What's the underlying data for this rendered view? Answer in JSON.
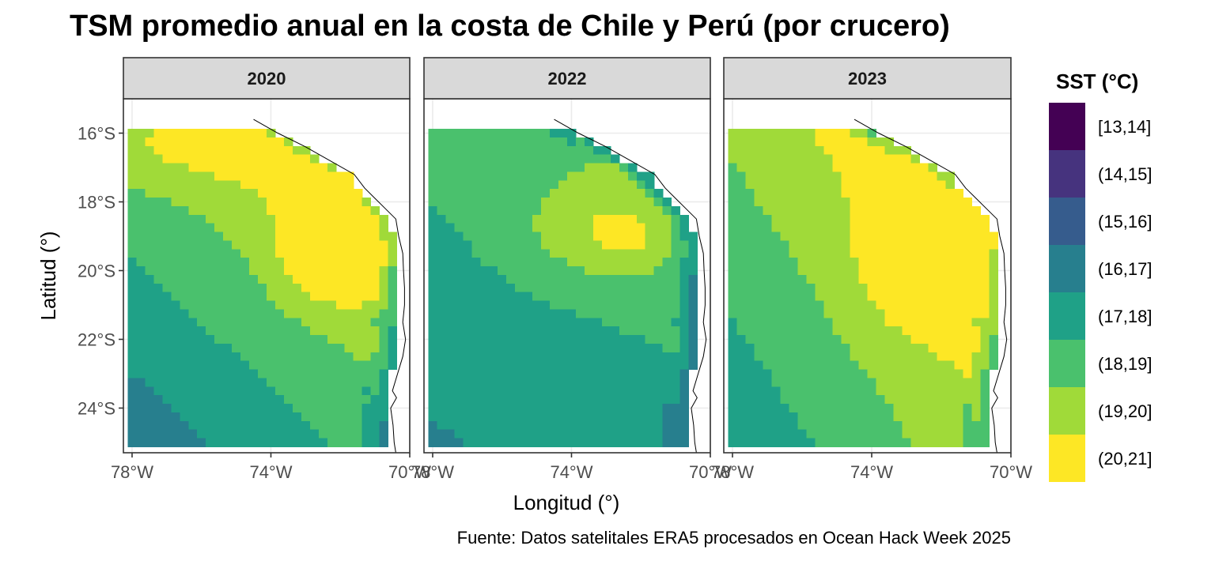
{
  "title": "TSM promedio anual en la costa de Chile y Perú (por crucero)",
  "caption": "Fuente: Datos satelitales ERA5 procesados en Ocean Hack Week 2025",
  "chart_data": {
    "type": "heatmap",
    "facet_labels": [
      "2020",
      "2022",
      "2023"
    ],
    "xlabel": "Longitud (°)",
    "ylabel": "Latitud (°)",
    "xlim": [
      -78.25,
      -70.0
    ],
    "ylim": [
      -25.3,
      -15.0
    ],
    "x_ticks": [
      {
        "value": -78,
        "label": "78°W"
      },
      {
        "value": -74,
        "label": "74°W"
      },
      {
        "value": -70,
        "label": "70°W"
      }
    ],
    "y_ticks": [
      {
        "value": -16,
        "label": "16°S"
      },
      {
        "value": -18,
        "label": "18°S"
      },
      {
        "value": -20,
        "label": "20°S"
      },
      {
        "value": -22,
        "label": "22°S"
      },
      {
        "value": -24,
        "label": "24°S"
      }
    ],
    "grid": true,
    "legend": {
      "title": "SST (°C)",
      "placement": "right",
      "bins": [
        "[13,14]",
        "(14,15]",
        "(15,16]",
        "(16,17]",
        "(17,18]",
        "(18,19]",
        "(19,20]",
        "(20,21]"
      ],
      "colors": [
        "#440154",
        "#46337E",
        "#365C8D",
        "#277F8E",
        "#1FA187",
        "#4AC16D",
        "#A0DA39",
        "#FDE725"
      ]
    },
    "grid_extent": {
      "lon": [
        -78.0,
        -70.25
      ],
      "lat": [
        -25.0,
        -16.0
      ],
      "resolution": 0.25
    },
    "coastline": [
      [
        -74.5,
        -15.6
      ],
      [
        -73.8,
        -16.0
      ],
      [
        -73.0,
        -16.4
      ],
      [
        -72.3,
        -16.8
      ],
      [
        -71.6,
        -17.2
      ],
      [
        -71.3,
        -17.6
      ],
      [
        -71.0,
        -17.9
      ],
      [
        -70.7,
        -18.2
      ],
      [
        -70.4,
        -18.5
      ],
      [
        -70.32,
        -19.0
      ],
      [
        -70.2,
        -19.5
      ],
      [
        -70.18,
        -20.0
      ],
      [
        -70.15,
        -20.5
      ],
      [
        -70.15,
        -21.0
      ],
      [
        -70.2,
        -21.5
      ],
      [
        -70.12,
        -22.0
      ],
      [
        -70.2,
        -22.5
      ],
      [
        -70.35,
        -23.0
      ],
      [
        -70.5,
        -23.5
      ],
      [
        -70.38,
        -23.7
      ],
      [
        -70.55,
        -24.0
      ],
      [
        -70.48,
        -24.5
      ],
      [
        -70.45,
        -25.0
      ],
      [
        -70.4,
        -25.3
      ]
    ]
  }
}
